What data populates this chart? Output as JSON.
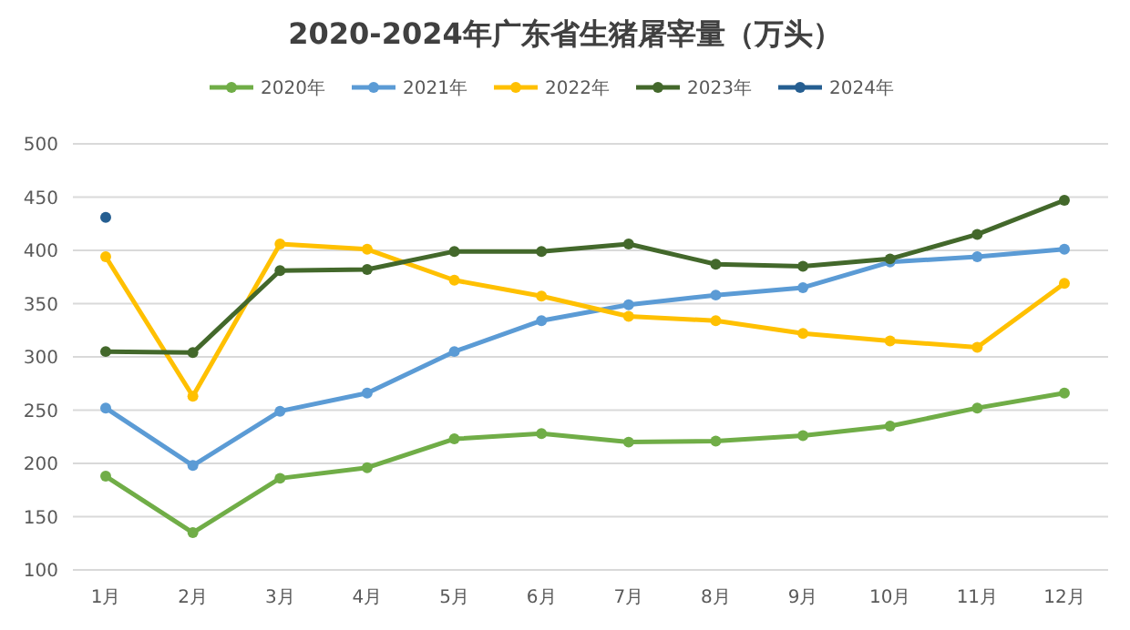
{
  "chart_data": {
    "type": "line",
    "title": "2020-2024年广东省生猪屠宰量（万头）",
    "categories": [
      "1月",
      "2月",
      "3月",
      "4月",
      "5月",
      "6月",
      "7月",
      "8月",
      "9月",
      "10月",
      "11月",
      "12月"
    ],
    "series": [
      {
        "name": "2020年",
        "color": "#70ad47",
        "values": [
          188,
          135,
          186,
          196,
          223,
          228,
          220,
          221,
          226,
          235,
          252,
          266
        ]
      },
      {
        "name": "2021年",
        "color": "#5b9bd5",
        "values": [
          252,
          198,
          249,
          266,
          305,
          334,
          349,
          358,
          365,
          389,
          394,
          401
        ]
      },
      {
        "name": "2022年",
        "color": "#ffc000",
        "values": [
          394,
          263,
          406,
          401,
          372,
          357,
          338,
          334,
          322,
          315,
          309,
          369
        ]
      },
      {
        "name": "2023年",
        "color": "#43682b",
        "values": [
          305,
          304,
          381,
          382,
          399,
          399,
          406,
          387,
          385,
          392,
          415,
          447
        ]
      },
      {
        "name": "2024年",
        "color": "#255e91",
        "values": [
          431,
          null,
          null,
          null,
          null,
          null,
          null,
          null,
          null,
          null,
          null,
          null
        ]
      }
    ],
    "ylim": [
      100,
      500
    ],
    "yticks": [
      100,
      150,
      200,
      250,
      300,
      350,
      400,
      450,
      500
    ],
    "grid": "y",
    "legend": "top",
    "marker": "circle",
    "line_style": "solid"
  }
}
